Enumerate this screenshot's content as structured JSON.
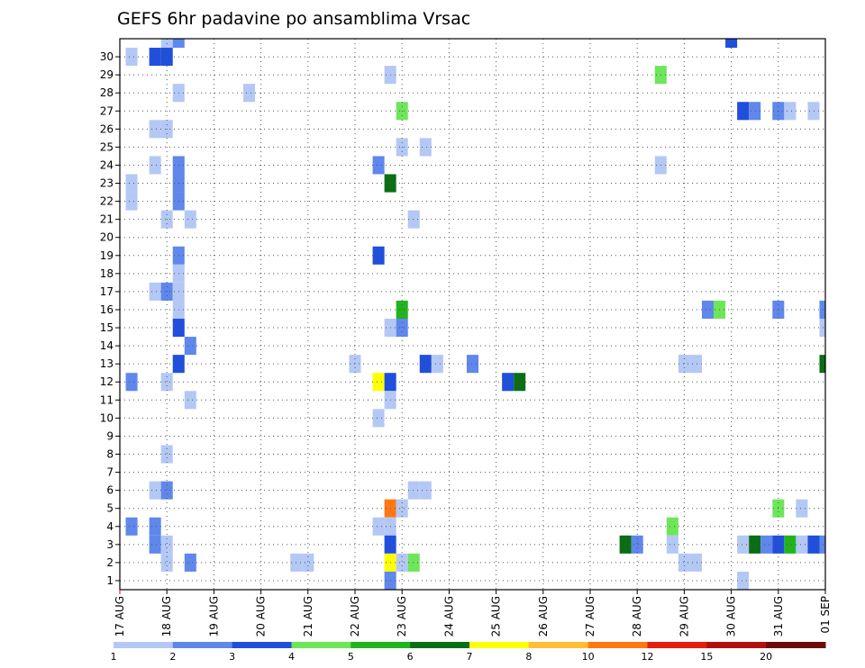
{
  "chart_data": {
    "type": "heatmap",
    "title": "GEFS 6hr padavine po ansamblima Vrsac",
    "xlabel": "",
    "ylabel": "",
    "x_ticks": [
      "17 AUG",
      "18 AUG",
      "19 AUG",
      "20 AUG",
      "21 AUG",
      "22 AUG",
      "23 AUG",
      "24 AUG",
      "25 AUG",
      "26 AUG",
      "27 AUG",
      "28 AUG",
      "29 AUG",
      "30 AUG",
      "31 AUG",
      "01 SEP"
    ],
    "y_ticks": [
      "1",
      "2",
      "3",
      "4",
      "5",
      "6",
      "7",
      "8",
      "9",
      "10",
      "11",
      "12",
      "13",
      "14",
      "15",
      "16",
      "17",
      "18",
      "19",
      "20",
      "21",
      "22",
      "23",
      "24",
      "25",
      "26",
      "27",
      "28",
      "29",
      "30"
    ],
    "xlim": [
      "17 AUG 00Z",
      "01 SEP 00Z"
    ],
    "ylim": [
      0,
      30
    ],
    "grid": true,
    "colorbar": {
      "levels": [
        "1",
        "2",
        "3",
        "4",
        "5",
        "6",
        "7",
        "8",
        "10",
        "12",
        "15",
        "20"
      ],
      "colors": [
        "#b4c8f5",
        "#5f87ec",
        "#1f4fdc",
        "#6ee65a",
        "#21b41e",
        "#0a6e14",
        "#ffff00",
        "#ffbe37",
        "#ff7814",
        "#e61e0f",
        "#b40f0f",
        "#6e0a0a"
      ]
    },
    "cells": [
      {
        "t": "17/06",
        "m": 29,
        "c": 1
      },
      {
        "t": "17/06",
        "m": 22,
        "c": 1
      },
      {
        "t": "17/06",
        "m": 21,
        "c": 1
      },
      {
        "t": "17/06",
        "m": 11,
        "c": 2
      },
      {
        "t": "17/06",
        "m": 3,
        "c": 2
      },
      {
        "t": "17/18",
        "m": 29,
        "c": 3
      },
      {
        "t": "17/18",
        "m": 25,
        "c": 1
      },
      {
        "t": "17/18",
        "m": 23,
        "c": 1
      },
      {
        "t": "17/18",
        "m": 16,
        "c": 1
      },
      {
        "t": "17/18",
        "m": 5,
        "c": 1
      },
      {
        "t": "17/18",
        "m": 3,
        "c": 2
      },
      {
        "t": "17/18",
        "m": 2,
        "c": 2
      },
      {
        "t": "18/00",
        "m": 30,
        "c": 1
      },
      {
        "t": "18/00",
        "m": 29,
        "c": 3
      },
      {
        "t": "18/00",
        "m": 25,
        "c": 1
      },
      {
        "t": "18/00",
        "m": 20,
        "c": 1
      },
      {
        "t": "18/00",
        "m": 16,
        "c": 2
      },
      {
        "t": "18/00",
        "m": 11,
        "c": 1
      },
      {
        "t": "18/00",
        "m": 7,
        "c": 1
      },
      {
        "t": "18/00",
        "m": 5,
        "c": 2
      },
      {
        "t": "18/00",
        "m": 2,
        "c": 1
      },
      {
        "t": "18/00",
        "m": 1,
        "c": 1
      },
      {
        "t": "18/06",
        "m": 30,
        "c": 2
      },
      {
        "t": "18/06",
        "m": 27,
        "c": 1
      },
      {
        "t": "18/06",
        "m": 23,
        "c": 2
      },
      {
        "t": "18/06",
        "m": 22,
        "c": 2
      },
      {
        "t": "18/06",
        "m": 21,
        "c": 2
      },
      {
        "t": "18/06",
        "m": 18,
        "c": 2
      },
      {
        "t": "18/06",
        "m": 17,
        "c": 1
      },
      {
        "t": "18/06",
        "m": 16,
        "c": 1
      },
      {
        "t": "18/06",
        "m": 15,
        "c": 1
      },
      {
        "t": "18/06",
        "m": 14,
        "c": 3
      },
      {
        "t": "18/06",
        "m": 12,
        "c": 3
      },
      {
        "t": "18/12",
        "m": 20,
        "c": 1
      },
      {
        "t": "18/12",
        "m": 13,
        "c": 2
      },
      {
        "t": "18/12",
        "m": 10,
        "c": 1
      },
      {
        "t": "18/12",
        "m": 1,
        "c": 2
      },
      {
        "t": "19/18",
        "m": 27,
        "c": 1
      },
      {
        "t": "20/18",
        "m": 1,
        "c": 1
      },
      {
        "t": "21/00",
        "m": 1,
        "c": 1
      },
      {
        "t": "22/00",
        "m": 12,
        "c": 1
      },
      {
        "t": "22/12",
        "m": 23,
        "c": 2
      },
      {
        "t": "22/12",
        "m": 18,
        "c": 3
      },
      {
        "t": "22/12",
        "m": 11,
        "c": 7
      },
      {
        "t": "22/12",
        "m": 9,
        "c": 1
      },
      {
        "t": "22/12",
        "m": 3,
        "c": 1
      },
      {
        "t": "22/18",
        "m": 28,
        "c": 1
      },
      {
        "t": "22/18",
        "m": 22,
        "c": 6
      },
      {
        "t": "22/18",
        "m": 14,
        "c": 1
      },
      {
        "t": "22/18",
        "m": 11,
        "c": 3
      },
      {
        "t": "22/18",
        "m": 10,
        "c": 1
      },
      {
        "t": "22/18",
        "m": 4,
        "c": 9
      },
      {
        "t": "22/18",
        "m": 3,
        "c": 1
      },
      {
        "t": "22/18",
        "m": 2,
        "c": 3
      },
      {
        "t": "22/18",
        "m": 1,
        "c": 7
      },
      {
        "t": "22/18",
        "m": 0,
        "c": 2
      },
      {
        "t": "23/00",
        "m": 26,
        "c": 4
      },
      {
        "t": "23/00",
        "m": 24,
        "c": 1
      },
      {
        "t": "23/00",
        "m": 15,
        "c": 5
      },
      {
        "t": "23/00",
        "m": 14,
        "c": 2
      },
      {
        "t": "23/00",
        "m": 4,
        "c": 1
      },
      {
        "t": "23/00",
        "m": 1,
        "c": 1
      },
      {
        "t": "23/06",
        "m": 20,
        "c": 1
      },
      {
        "t": "23/06",
        "m": 5,
        "c": 1
      },
      {
        "t": "23/06",
        "m": 1,
        "c": 4
      },
      {
        "t": "23/12",
        "m": 24,
        "c": 1
      },
      {
        "t": "23/12",
        "m": 12,
        "c": 3
      },
      {
        "t": "23/12",
        "m": 5,
        "c": 1
      },
      {
        "t": "23/18",
        "m": 12,
        "c": 1
      },
      {
        "t": "24/12",
        "m": 12,
        "c": 2
      },
      {
        "t": "25/06",
        "m": 11,
        "c": 3
      },
      {
        "t": "25/12",
        "m": 11,
        "c": 6
      },
      {
        "t": "27/18",
        "m": 2,
        "c": 6
      },
      {
        "t": "28/00",
        "m": 2,
        "c": 2
      },
      {
        "t": "28/12",
        "m": 28,
        "c": 4
      },
      {
        "t": "28/12",
        "m": 23,
        "c": 1
      },
      {
        "t": "28/18",
        "m": 3,
        "c": 4
      },
      {
        "t": "28/18",
        "m": 2,
        "c": 1
      },
      {
        "t": "29/00",
        "m": 12,
        "c": 1
      },
      {
        "t": "29/00",
        "m": 1,
        "c": 1
      },
      {
        "t": "29/06",
        "m": 12,
        "c": 1
      },
      {
        "t": "29/06",
        "m": 1,
        "c": 1
      },
      {
        "t": "29/12",
        "m": 15,
        "c": 2
      },
      {
        "t": "29/18",
        "m": 15,
        "c": 4
      },
      {
        "t": "30/00",
        "m": 30,
        "c": 3
      },
      {
        "t": "30/06",
        "m": 26,
        "c": 3
      },
      {
        "t": "30/06",
        "m": 2,
        "c": 1
      },
      {
        "t": "30/06",
        "m": 0,
        "c": 1
      },
      {
        "t": "30/12",
        "m": 26,
        "c": 2
      },
      {
        "t": "30/12",
        "m": 2,
        "c": 6
      },
      {
        "t": "30/18",
        "m": 2,
        "c": 2
      },
      {
        "t": "31/00",
        "m": 26,
        "c": 2
      },
      {
        "t": "31/00",
        "m": 15,
        "c": 2
      },
      {
        "t": "31/00",
        "m": 4,
        "c": 4
      },
      {
        "t": "31/00",
        "m": 2,
        "c": 3
      },
      {
        "t": "31/06",
        "m": 26,
        "c": 1
      },
      {
        "t": "31/06",
        "m": 2,
        "c": 5
      },
      {
        "t": "31/12",
        "m": 4,
        "c": 1
      },
      {
        "t": "31/12",
        "m": 2,
        "c": 1
      },
      {
        "t": "31/18",
        "m": 26,
        "c": 1
      },
      {
        "t": "31/18",
        "m": 2,
        "c": 3
      },
      {
        "t": "01/00",
        "m": 15,
        "c": 2
      },
      {
        "t": "01/00",
        "m": 14,
        "c": 1
      },
      {
        "t": "01/00",
        "m": 12,
        "c": 6
      },
      {
        "t": "01/00",
        "m": 2,
        "c": 2
      }
    ]
  }
}
